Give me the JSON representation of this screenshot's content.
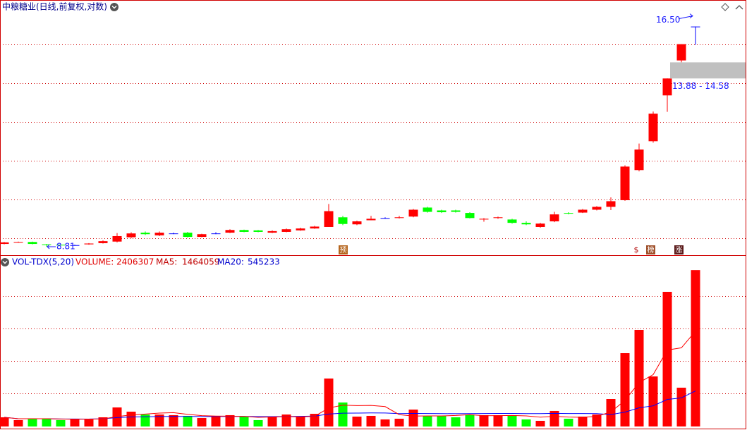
{
  "chart_data": {
    "type": "candlestick",
    "title": "中粮糖业(日线,前复权,对数)",
    "log_scale": true,
    "ylim": [
      8.6,
      17.76
    ],
    "up_color": "#ff0000",
    "down_color": "#00ff00",
    "flat_color": "#0000ff",
    "open": [
      8.88,
      8.92,
      8.93,
      8.87,
      8.86,
      8.85,
      8.87,
      8.9,
      8.94,
      9.05,
      9.17,
      9.1,
      9.15,
      9.17,
      9.06,
      9.15,
      9.17,
      9.24,
      9.23,
      9.17,
      9.19,
      9.23,
      9.28,
      9.32,
      9.58,
      9.39,
      9.5,
      9.56,
      9.56,
      9.6,
      9.85,
      9.77,
      9.77,
      9.7,
      9.52,
      9.56,
      9.52,
      9.43,
      9.32,
      9.47,
      9.7,
      9.71,
      9.79,
      9.87,
      10.06,
      10.96,
      11.9,
      13.56,
      14.98,
      16.5
    ],
    "high": [
      8.93,
      8.94,
      8.94,
      8.88,
      8.87,
      8.86,
      8.9,
      8.97,
      9.16,
      9.18,
      9.2,
      9.2,
      9.17,
      9.19,
      9.14,
      9.18,
      9.26,
      9.25,
      9.24,
      9.23,
      9.28,
      9.3,
      9.35,
      9.95,
      9.62,
      9.49,
      9.62,
      9.58,
      9.62,
      9.81,
      9.87,
      9.79,
      9.79,
      9.72,
      9.56,
      9.6,
      9.54,
      9.47,
      9.43,
      9.73,
      9.72,
      9.81,
      9.89,
      10.14,
      11.11,
      11.82,
      12.95,
      14.23,
      15.69,
      16.5
    ],
    "low": [
      8.87,
      8.91,
      8.87,
      8.81,
      8.84,
      8.84,
      8.86,
      8.89,
      8.92,
      9.03,
      9.11,
      9.08,
      9.13,
      9.04,
      9.05,
      9.13,
      9.16,
      9.18,
      9.18,
      9.16,
      9.18,
      9.22,
      9.27,
      9.32,
      9.37,
      9.37,
      9.5,
      9.54,
      9.55,
      9.58,
      9.71,
      9.7,
      9.71,
      9.55,
      9.46,
      9.54,
      9.41,
      9.37,
      9.3,
      9.45,
      9.66,
      9.7,
      9.77,
      9.78,
      10.04,
      10.92,
      11.85,
      12.94,
      14.9,
      15.66
    ],
    "close": [
      8.92,
      8.93,
      8.88,
      8.86,
      8.85,
      8.85,
      8.89,
      8.95,
      9.08,
      9.15,
      9.13,
      9.17,
      9.15,
      9.06,
      9.13,
      9.15,
      9.24,
      9.19,
      9.19,
      9.21,
      9.26,
      9.28,
      9.33,
      9.75,
      9.4,
      9.47,
      9.54,
      9.56,
      9.58,
      9.79,
      9.73,
      9.72,
      9.73,
      9.56,
      9.54,
      9.58,
      9.43,
      9.39,
      9.41,
      9.66,
      9.68,
      9.79,
      9.87,
      10.03,
      11.07,
      11.62,
      12.87,
      14.23,
      15.69,
      16.5
    ],
    "high_label": {
      "value": 16.5,
      "label": "16.50"
    },
    "low_label": 8.81,
    "gap_label": "13.88 - 14.58",
    "markers": [
      "预",
      "$",
      "榜",
      "涨"
    ],
    "volume_panel": {
      "name": "VOL-TDX(5,20)",
      "volume_label": "VOLUME:",
      "volume_value": 2406307,
      "ma5_label": "MA5:",
      "ma5_value": 1464059,
      "ma20_label": "MA20:",
      "ma20_value": 545233,
      "ma5_color": "#ff0000",
      "ma20_color": "#0000ff",
      "ylim": [
        0,
        2625000
      ],
      "values": [
        141000,
        98000,
        119000,
        119000,
        98000,
        119000,
        108000,
        141000,
        293000,
        228000,
        184000,
        184000,
        174000,
        163000,
        130000,
        152000,
        174000,
        152000,
        98000,
        152000,
        184000,
        152000,
        195000,
        738000,
        369000,
        152000,
        163000,
        108000,
        119000,
        260000,
        163000,
        163000,
        141000,
        184000,
        174000,
        174000,
        174000,
        108000,
        87000,
        239000,
        119000,
        152000,
        184000,
        423000,
        1128000,
        1486000,
        770000,
        2072000,
        597000,
        2406307
      ]
    }
  }
}
